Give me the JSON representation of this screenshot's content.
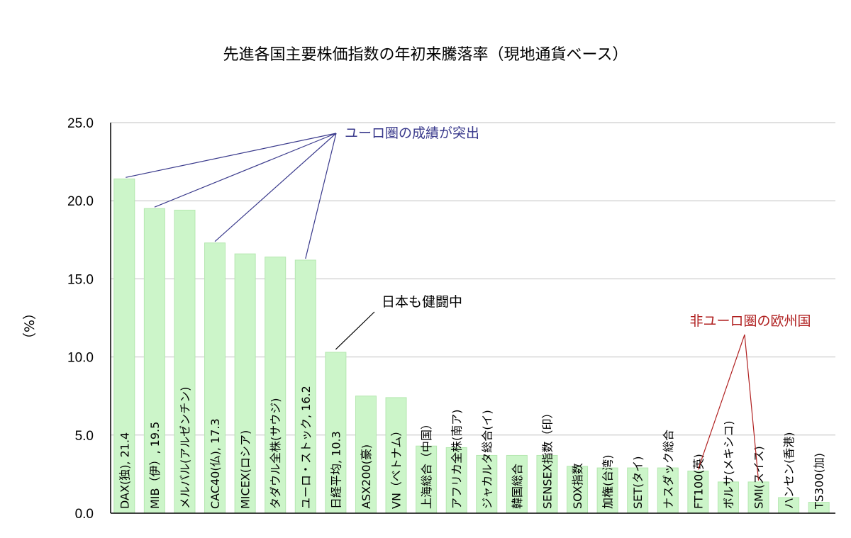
{
  "chart_data": {
    "type": "bar",
    "title": "先進各国主要株価指数の年初来騰落率（現地通貨ベース）",
    "ylabel": "（%）",
    "ylim": [
      0,
      25
    ],
    "yticks": [
      "0.0",
      "5.0",
      "10.0",
      "15.0",
      "20.0",
      "25.0"
    ],
    "grid": true,
    "categories": [
      "DAX(独)",
      "MIB（伊）",
      "メルバル(アルゼンチン)",
      "CAC40(仏)",
      "MICEX(ロシア)",
      "タダウル全株(サウジ)",
      "ユーロ・ストック",
      "日経平均",
      "ASX200(豪)",
      "VN（ベトナム）",
      "上海総合（中国）",
      "アフリカ全株(南ア)",
      "ジャカルタ総合(イ)",
      "韓国総合",
      "SENSEX指数（印）",
      "SOX指数",
      "加権(台湾)",
      "SET(タイ)",
      "ナスダック総合",
      "FT100(英)",
      "ボルサ(メキシコ)",
      "SMI(スイス)",
      "ハンセン(香港)",
      "TS300(加)"
    ],
    "values": [
      21.4,
      19.5,
      19.4,
      17.3,
      16.6,
      16.4,
      16.2,
      10.3,
      7.5,
      7.4,
      4.3,
      4.2,
      3.7,
      3.7,
      3.7,
      3.0,
      2.9,
      2.9,
      2.9,
      2.7,
      2.0,
      2.0,
      1.0,
      0.7
    ],
    "bar_labels": [
      "DAX(独), 21.4",
      "MIB（伊）, 19.5",
      "メルバル(アルゼンチン)",
      "CAC40(仏), 17.3",
      "MICEX(ロシア)",
      "タダウル全株(サウジ)",
      "ユーロ・ストック, 16.2",
      "日経平均, 10.3",
      "ASX200(豪)",
      "VN（ベトナム）",
      "上海総合（中国）",
      "アフリカ全株(南ア)",
      "ジャカルタ総合(イ)",
      "韓国総合",
      "SENSEX指数（印）",
      "SOX指数",
      "加権(台湾)",
      "SET(タイ)",
      "ナスダック総合",
      "FT100(英)",
      "ボルサ(メキシコ)",
      "SMI(スイス)",
      "ハンセン(香港)",
      "TS300(加)"
    ],
    "annotations": [
      {
        "text": "ユーロ圏の成績が突出",
        "color": "#3a3a8c",
        "targets": [
          0,
          1,
          3,
          6
        ]
      },
      {
        "text": "日本も健闘中",
        "color": "#000000",
        "targets": [
          7
        ]
      },
      {
        "text": "非ユーロ圏の欧州国",
        "color": "#b02020",
        "targets": [
          19,
          21
        ]
      }
    ],
    "colors": {
      "bar_fill": "#ccf5c9",
      "bar_stroke": "#b5e8b0",
      "grid": "#c0c0c0",
      "axis": "#000000"
    }
  }
}
